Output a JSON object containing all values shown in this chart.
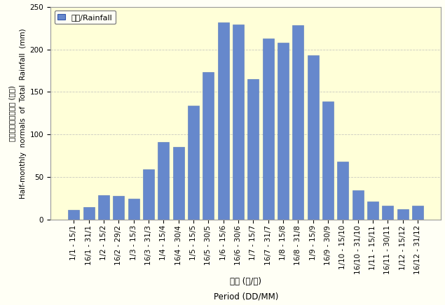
{
  "categories": [
    "1/1 - 15/1",
    "16/1 - 31/1",
    "1/2 - 15/2",
    "16/2 - 29/2",
    "1/3 - 15/3",
    "16/3 - 31/3",
    "1/4 - 15/4",
    "16/4 - 30/4",
    "1/5 - 15/5",
    "16/5 - 30/5",
    "1/6 - 15/6",
    "16/6 - 30/6",
    "1/7 - 15/7",
    "16/7 - 31/7",
    "1/8 - 15/8",
    "16/8 - 31/8",
    "1/9 - 15/9",
    "16/9 - 30/9",
    "1/10 - 15/10",
    "16/10 - 31/10",
    "1/11 - 15/11",
    "16/11 - 30/11",
    "1/12 - 15/12",
    "16/12 - 31/12"
  ],
  "values": [
    12,
    15,
    29,
    28,
    25,
    59,
    91,
    86,
    134,
    173,
    232,
    229,
    165,
    213,
    208,
    228,
    193,
    139,
    68,
    35,
    22,
    17,
    13,
    17
  ],
  "bar_color": "#6688CC",
  "bar_edge_color": "#5577BB",
  "background_color": "#FFFFF5",
  "plot_bg_color": "#FFFFD8",
  "grid_color": "#BBBBBB",
  "ylabel_cn": "總雨量的半月平均値 (毫米)",
  "ylabel_en": "Half-monthly  normals  of  Total  Rainfall  (mm)",
  "xlabel_cn": "期間 (日/月)",
  "xlabel_en": "Period (DD/MM)",
  "legend_label": "雨量/Rainfall",
  "ylim": [
    0,
    250
  ],
  "yticks": [
    0,
    50,
    100,
    150,
    200,
    250
  ],
  "tick_fontsize": 7.5,
  "label_fontsize": 8.5
}
